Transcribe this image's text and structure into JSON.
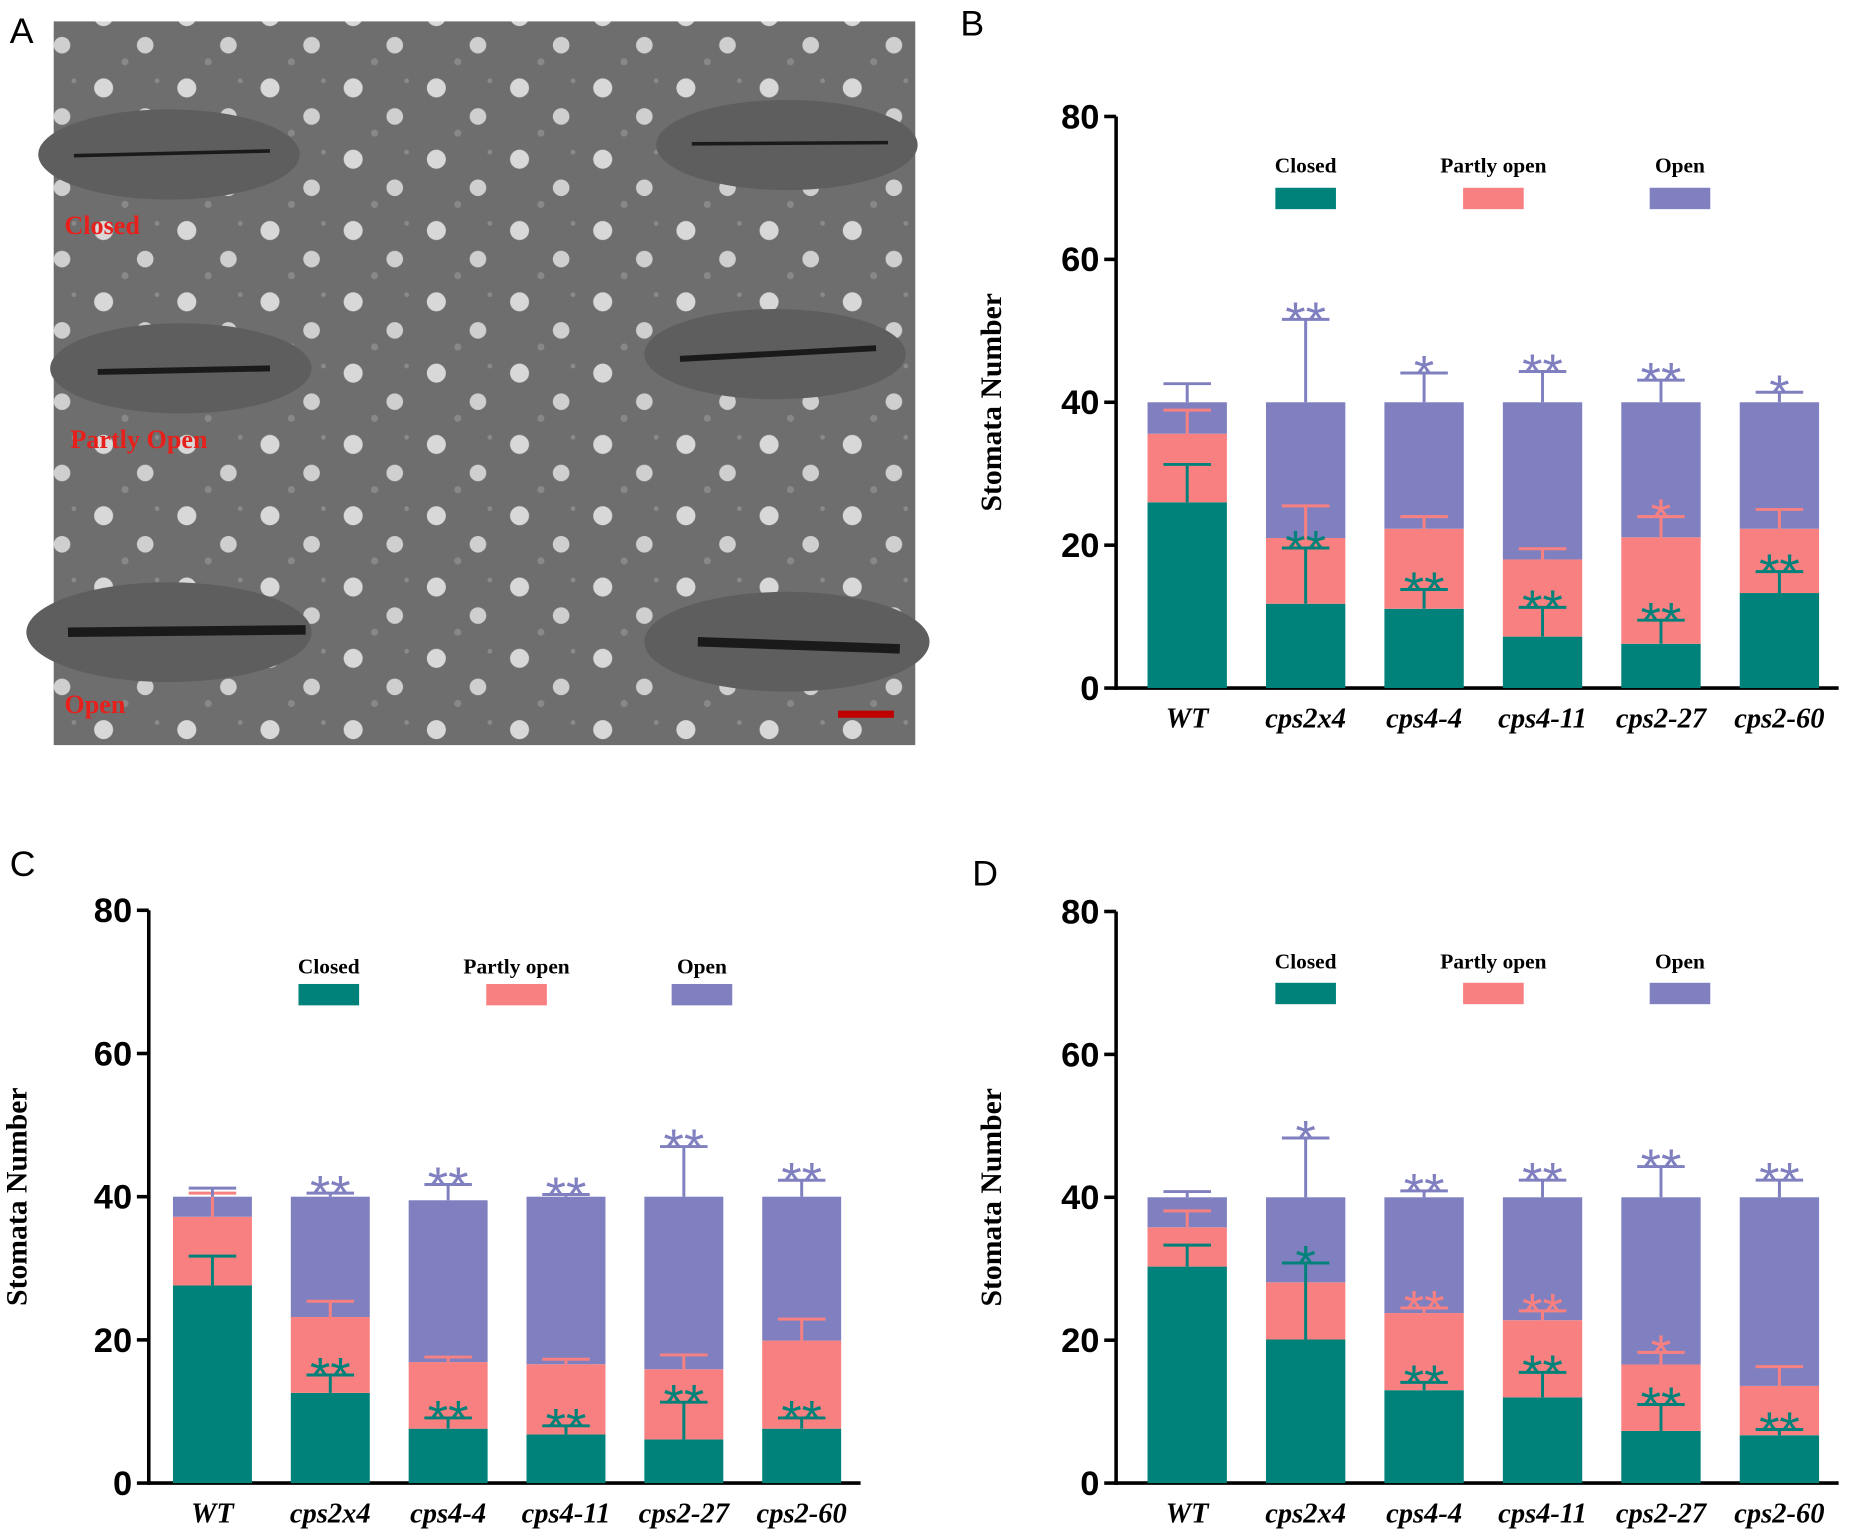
{
  "image_panel": {
    "panel_label": "A",
    "annotations": [
      "Closed",
      "Partly Open",
      "Open"
    ]
  },
  "chart_data": [
    {
      "panel_label": "B",
      "type": "bar",
      "stacked": true,
      "ylabel": "Stomata Number",
      "categories": [
        "WT",
        "cps2x4",
        "cps4-4",
        "cps4-11",
        "cps2-27",
        "cps2-60"
      ],
      "ylim": [
        0,
        80
      ],
      "yticks": [
        0,
        20,
        40,
        60,
        80
      ],
      "series": [
        {
          "name": "Closed",
          "color": "#00827a",
          "values": [
            26.0,
            11.8,
            11.1,
            7.2,
            6.2,
            13.3
          ],
          "errors": [
            5.3,
            7.8,
            2.7,
            4.1,
            3.3,
            3.0
          ],
          "significance": [
            null,
            "**",
            "**",
            "**",
            "**",
            "**"
          ]
        },
        {
          "name": "Partly open",
          "color": "#f98080",
          "values": [
            9.6,
            9.2,
            11.2,
            10.8,
            14.9,
            9.0
          ],
          "errors": [
            3.3,
            4.5,
            1.7,
            1.5,
            2.9,
            2.7
          ],
          "significance": [
            null,
            null,
            null,
            null,
            "*",
            null
          ]
        },
        {
          "name": "Open",
          "color": "#8080c0",
          "values": [
            4.4,
            19.0,
            17.7,
            22.0,
            18.9,
            17.7
          ],
          "errors": [
            2.6,
            11.6,
            4.1,
            4.3,
            3.1,
            1.4
          ],
          "significance": [
            null,
            "**",
            "*",
            "**",
            "**",
            "*"
          ]
        }
      ]
    },
    {
      "panel_label": "C",
      "type": "bar",
      "stacked": true,
      "ylabel": "Stomata Number",
      "categories": [
        "WT",
        "cps2x4",
        "cps4-4",
        "cps4-11",
        "cps2-27",
        "cps2-60"
      ],
      "ylim": [
        0,
        80
      ],
      "yticks": [
        0,
        20,
        40,
        60,
        80
      ],
      "series": [
        {
          "name": "Closed",
          "color": "#00827a",
          "values": [
            27.6,
            12.6,
            7.6,
            6.8,
            6.1,
            7.6
          ],
          "errors": [
            4.1,
            2.5,
            1.5,
            1.2,
            5.2,
            1.5
          ],
          "significance": [
            null,
            "**",
            "**",
            "**",
            "**",
            "**"
          ]
        },
        {
          "name": "Partly open",
          "color": "#f98080",
          "values": [
            9.6,
            10.6,
            9.3,
            9.8,
            9.8,
            12.3
          ],
          "errors": [
            3.3,
            2.2,
            0.7,
            0.7,
            2.0,
            3.0
          ],
          "significance": [
            null,
            null,
            null,
            null,
            null,
            null
          ]
        },
        {
          "name": "Open",
          "color": "#8080c0",
          "values": [
            2.8,
            16.8,
            22.6,
            23.4,
            24.1,
            20.1
          ],
          "errors": [
            1.2,
            0.5,
            2.2,
            0.3,
            7.0,
            2.3
          ],
          "significance": [
            null,
            "**",
            "**",
            "**",
            "**",
            "**"
          ]
        }
      ]
    },
    {
      "panel_label": "D",
      "type": "bar",
      "stacked": true,
      "ylabel": "Stomata Number",
      "categories": [
        "WT",
        "cps2x4",
        "cps4-4",
        "cps4-11",
        "cps2-27",
        "cps2-60"
      ],
      "ylim": [
        0,
        80
      ],
      "yticks": [
        0,
        20,
        40,
        60,
        80
      ],
      "series": [
        {
          "name": "Closed",
          "color": "#00827a",
          "values": [
            30.3,
            20.1,
            13.0,
            12.0,
            7.3,
            6.7
          ],
          "errors": [
            3.0,
            10.7,
            1.1,
            3.5,
            3.7,
            0.8
          ],
          "significance": [
            null,
            "*",
            "**",
            "**",
            "**",
            "**"
          ]
        },
        {
          "name": "Partly open",
          "color": "#f98080",
          "values": [
            5.5,
            8.0,
            10.8,
            10.8,
            9.3,
            6.9
          ],
          "errors": [
            2.3,
            null,
            0.7,
            1.3,
            1.7,
            2.7
          ],
          "significance": [
            null,
            null,
            "**",
            "**",
            "*",
            null
          ]
        },
        {
          "name": "Open",
          "color": "#8080c0",
          "values": [
            4.2,
            11.9,
            16.2,
            17.2,
            23.4,
            26.4
          ],
          "errors": [
            0.8,
            8.3,
            0.9,
            2.4,
            4.3,
            2.4
          ],
          "significance": [
            null,
            "*",
            "**",
            "**",
            "**",
            "**"
          ]
        }
      ]
    }
  ]
}
